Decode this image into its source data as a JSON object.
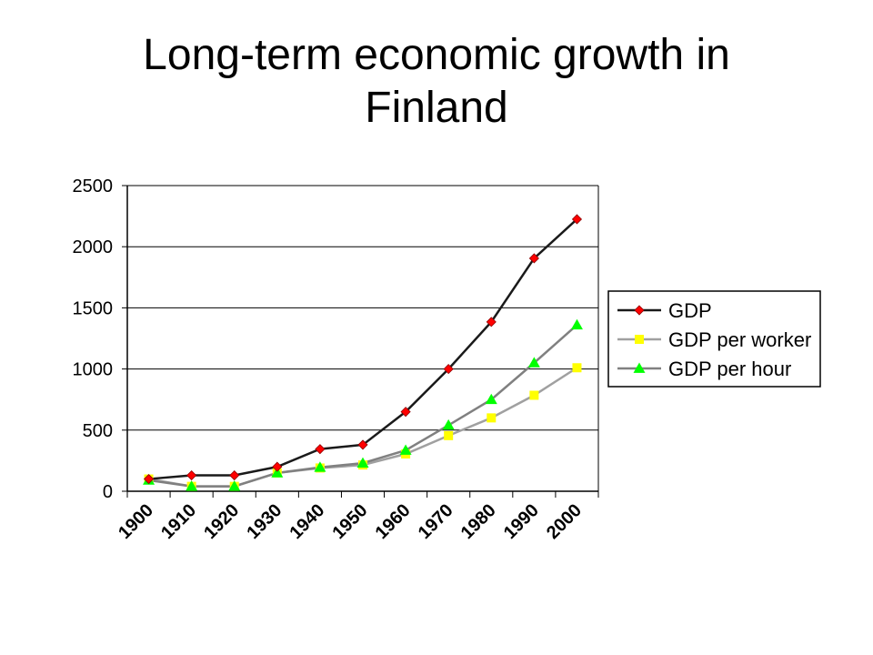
{
  "slide": {
    "title": "Long-term economic growth in Finland"
  },
  "chart_data": {
    "type": "line",
    "title": "",
    "xlabel": "",
    "ylabel": "",
    "categories": [
      "1900",
      "1910",
      "1920",
      "1930",
      "1940",
      "1950",
      "1960",
      "1970",
      "1980",
      "1990",
      "2000"
    ],
    "x": [
      1905,
      1915,
      1925,
      1935,
      1945,
      1955,
      1965,
      1975,
      1985,
      1995,
      2005
    ],
    "xlim": [
      1900,
      2010
    ],
    "ylim": [
      0,
      2500
    ],
    "yticks": [
      0,
      500,
      1000,
      1500,
      2000,
      2500
    ],
    "grid": true,
    "legend_position": "right",
    "series": [
      {
        "name": "GDP",
        "values": [
          100,
          130,
          130,
          200,
          345,
          380,
          650,
          1000,
          1385,
          1905,
          2225
        ],
        "line_color": "#1a1a1a",
        "marker": "diamond",
        "marker_color": "#ff0000"
      },
      {
        "name": "GDP per worker",
        "values": [
          100,
          40,
          40,
          150,
          190,
          215,
          305,
          455,
          600,
          785,
          1010
        ],
        "line_color": "#a0a0a0",
        "marker": "square",
        "marker_color": "#ffff00"
      },
      {
        "name": "GDP per hour",
        "values": [
          90,
          40,
          40,
          150,
          195,
          230,
          335,
          540,
          750,
          1050,
          1360
        ],
        "line_color": "#808080",
        "marker": "triangle",
        "marker_color": "#00ff00"
      }
    ]
  }
}
